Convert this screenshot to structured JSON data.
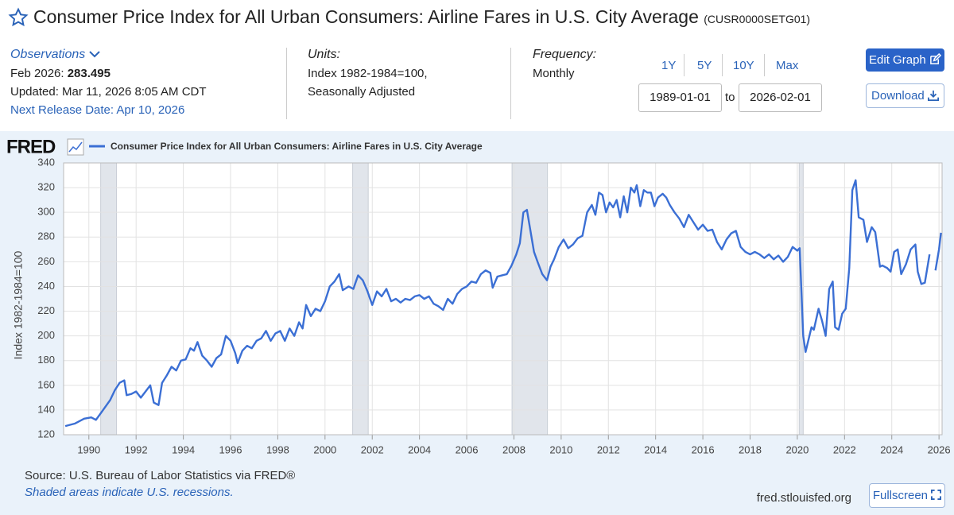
{
  "header": {
    "title": "Consumer Price Index for All Urban Consumers: Airline Fares in U.S. City Average",
    "series_id": "(CUSR0000SETG01)"
  },
  "observations": {
    "label": "Observations",
    "period": "Feb 2026: ",
    "value": "283.495",
    "updated": "Updated: Mar 11, 2026 8:05 AM CDT",
    "next_release": "Next Release Date: Apr 10, 2026"
  },
  "units": {
    "label": "Units:",
    "line1": "Index 1982-1984=100,",
    "line2": "Seasonally Adjusted"
  },
  "frequency": {
    "label": "Frequency:",
    "value": "Monthly"
  },
  "range_buttons": [
    "1Y",
    "5Y",
    "10Y",
    "Max"
  ],
  "date_range": {
    "start": "1989-01-01",
    "to": "to",
    "end": "2026-02-01"
  },
  "buttons": {
    "edit": "Edit Graph",
    "download": "Download",
    "fullscreen": "Fullscreen"
  },
  "logo": "FRED",
  "footer": {
    "source": "Source: U.S. Bureau of Labor Statistics via FRED®",
    "note": "Shaded areas indicate U.S. recessions.",
    "site": "fred.stlouisfed.org"
  },
  "chart_data": {
    "type": "line",
    "ylabel": "Index 1982-1984=100",
    "xlim": [
      1988.93,
      2026.13
    ],
    "ylim": [
      120,
      340
    ],
    "xticks": [
      1990,
      1992,
      1994,
      1996,
      1998,
      2000,
      2002,
      2004,
      2006,
      2008,
      2010,
      2012,
      2014,
      2016,
      2018,
      2020,
      2022,
      2024,
      2026
    ],
    "yticks": [
      120,
      140,
      160,
      180,
      200,
      220,
      240,
      260,
      280,
      300,
      320,
      340
    ],
    "grid": true,
    "recessions": [
      [
        1990.5,
        1991.17
      ],
      [
        2001.17,
        2001.83
      ],
      [
        2007.92,
        2009.42
      ],
      [
        2020.08,
        2020.25
      ]
    ],
    "x": [
      1989.0,
      1989.4,
      1989.8,
      1990.1,
      1990.3,
      1990.6,
      1990.9,
      1991.1,
      1991.3,
      1991.5,
      1991.6,
      1991.8,
      1992.0,
      1992.2,
      1992.4,
      1992.6,
      1992.75,
      1992.95,
      1993.1,
      1993.3,
      1993.5,
      1993.7,
      1993.9,
      1994.1,
      1994.3,
      1994.45,
      1994.6,
      1994.8,
      1995.0,
      1995.2,
      1995.4,
      1995.6,
      1995.8,
      1996.0,
      1996.2,
      1996.3,
      1996.5,
      1996.7,
      1996.9,
      1997.1,
      1997.3,
      1997.5,
      1997.7,
      1997.9,
      1998.1,
      1998.3,
      1998.5,
      1998.7,
      1998.9,
      1999.05,
      1999.2,
      1999.4,
      1999.6,
      1999.8,
      2000.0,
      2000.2,
      2000.4,
      2000.6,
      2000.75,
      2001.0,
      2001.2,
      2001.4,
      2001.6,
      2001.8,
      2002.0,
      2002.2,
      2002.4,
      2002.6,
      2002.8,
      2003.0,
      2003.2,
      2003.4,
      2003.6,
      2003.8,
      2004.0,
      2004.2,
      2004.4,
      2004.6,
      2004.8,
      2005.0,
      2005.2,
      2005.4,
      2005.6,
      2005.8,
      2006.0,
      2006.2,
      2006.4,
      2006.6,
      2006.8,
      2007.0,
      2007.1,
      2007.3,
      2007.5,
      2007.7,
      2007.9,
      2008.1,
      2008.25,
      2008.4,
      2008.55,
      2008.7,
      2008.85,
      2009.0,
      2009.2,
      2009.4,
      2009.55,
      2009.7,
      2009.9,
      2010.1,
      2010.3,
      2010.5,
      2010.7,
      2010.9,
      2011.1,
      2011.3,
      2011.45,
      2011.6,
      2011.75,
      2011.9,
      2012.05,
      2012.2,
      2012.35,
      2012.5,
      2012.65,
      2012.8,
      2012.95,
      2013.1,
      2013.2,
      2013.35,
      2013.5,
      2013.65,
      2013.8,
      2013.95,
      2014.1,
      2014.3,
      2014.45,
      2014.6,
      2014.8,
      2015.0,
      2015.2,
      2015.4,
      2015.6,
      2015.8,
      2016.0,
      2016.2,
      2016.4,
      2016.6,
      2016.8,
      2017.0,
      2017.2,
      2017.4,
      2017.6,
      2017.8,
      2018.0,
      2018.2,
      2018.4,
      2018.6,
      2018.8,
      2019.0,
      2019.2,
      2019.4,
      2019.6,
      2019.8,
      2020.0,
      2020.1,
      2020.25,
      2020.35,
      2020.6,
      2020.7,
      2020.9,
      2021.05,
      2021.2,
      2021.35,
      2021.5,
      2021.6,
      2021.75,
      2021.9,
      2022.05,
      2022.2,
      2022.33,
      2022.47,
      2022.6,
      2022.8,
      2022.95,
      2023.15,
      2023.3,
      2023.5,
      2023.6,
      2023.8,
      2023.95,
      2024.1,
      2024.25,
      2024.4,
      2024.6,
      2024.8,
      2025.0,
      2025.1,
      2025.25,
      2025.4,
      2025.6,
      2025.75,
      2025.85,
      2026.0,
      2026.083
    ],
    "series": [
      {
        "name": "Consumer Price Index for All Urban Consumers: Airline Fares in U.S. City Average",
        "color": "#3b6fd4",
        "values": [
          127,
          129,
          133,
          134,
          132,
          140,
          148,
          156,
          162,
          164,
          152,
          153,
          155,
          150,
          155,
          160,
          146,
          144,
          162,
          168,
          175,
          172,
          180,
          181,
          190,
          188,
          195,
          184,
          180,
          175,
          182,
          185,
          200,
          196,
          186,
          178,
          188,
          192,
          190,
          196,
          198,
          204,
          196,
          202,
          204,
          196,
          206,
          200,
          211,
          206,
          225,
          216,
          222,
          220,
          228,
          240,
          244,
          250,
          237,
          240,
          238,
          249,
          245,
          236,
          225,
          236,
          232,
          238,
          228,
          230,
          227,
          230,
          229,
          232,
          233,
          230,
          232,
          226,
          224,
          221,
          230,
          226,
          234,
          238,
          240,
          244,
          243,
          250,
          253,
          251,
          239,
          248,
          249,
          250,
          257,
          266,
          275,
          300,
          302,
          285,
          268,
          260,
          250,
          245,
          256,
          262,
          272,
          278,
          271,
          274,
          279,
          281,
          300,
          306,
          298,
          316,
          314,
          300,
          308,
          304,
          310,
          296,
          313,
          300,
          320,
          316,
          322,
          305,
          318,
          316,
          316,
          305,
          312,
          315,
          312,
          306,
          300,
          295,
          288,
          298,
          292,
          286,
          290,
          285,
          286,
          276,
          270,
          278,
          283,
          285,
          272,
          268,
          266,
          268,
          266,
          263,
          266,
          262,
          265,
          260,
          264,
          272,
          269,
          271,
          200,
          187,
          207,
          205,
          222,
          212,
          200,
          238,
          244,
          207,
          205,
          218,
          222,
          255,
          318,
          326,
          296,
          294,
          276,
          288,
          284,
          256,
          257,
          255,
          252,
          268,
          270,
          250,
          258,
          270,
          274,
          252,
          242,
          243,
          266,
          null,
          253,
          270,
          283.495
        ]
      }
    ]
  }
}
